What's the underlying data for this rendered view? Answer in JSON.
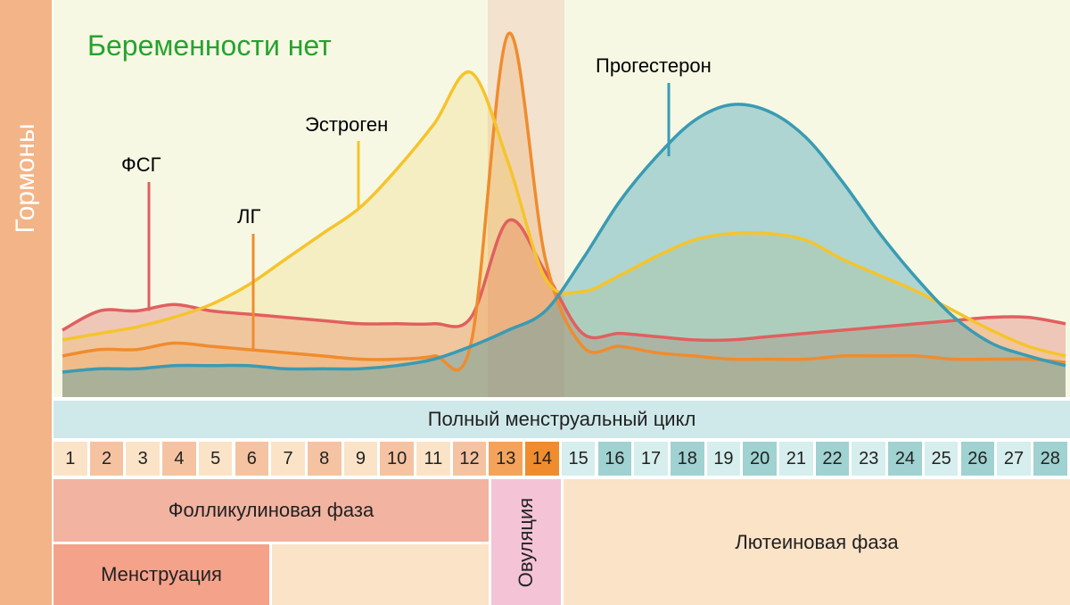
{
  "y_axis_label": "Гормоны",
  "chart_data": {
    "type": "line",
    "title": "Беременности нет",
    "xlabel": "Полный менструальный цикл",
    "x": [
      1,
      2,
      3,
      4,
      5,
      6,
      7,
      8,
      9,
      10,
      11,
      12,
      13,
      14,
      15,
      16,
      17,
      18,
      19,
      20,
      21,
      22,
      23,
      24,
      25,
      26,
      27,
      28
    ],
    "series": [
      {
        "name": "ФСГ",
        "color": "#e0605f",
        "values": [
          18,
          24,
          24,
          26,
          24,
          23,
          22,
          21,
          20,
          20,
          20,
          22,
          52,
          36,
          17,
          17,
          16,
          15,
          15,
          16,
          17,
          18,
          19,
          20,
          21,
          22,
          22,
          20
        ]
      },
      {
        "name": "ЛГ",
        "color": "#ef8c2e",
        "values": [
          10,
          12,
          12,
          14,
          13,
          12,
          11,
          10,
          9,
          9,
          10,
          14,
          110,
          40,
          13,
          13,
          11,
          10,
          9,
          9,
          9,
          10,
          10,
          10,
          9,
          9,
          9,
          8
        ]
      },
      {
        "name": "Эстроген",
        "color": "#f5c42c",
        "values": [
          15,
          17,
          19,
          22,
          26,
          32,
          40,
          48,
          56,
          68,
          82,
          98,
          70,
          34,
          30,
          35,
          41,
          46,
          48,
          48,
          46,
          40,
          35,
          30,
          24,
          18,
          13,
          10
        ]
      },
      {
        "name": "Прогестерон",
        "color": "#3a9bb3",
        "values": [
          5,
          6,
          6,
          7,
          7,
          7,
          6,
          6,
          6,
          7,
          9,
          13,
          18,
          24,
          40,
          58,
          72,
          83,
          88,
          86,
          78,
          64,
          48,
          34,
          22,
          14,
          10,
          7
        ]
      }
    ]
  },
  "cycle_label": "Полный менструальный цикл",
  "days": [
    "1",
    "2",
    "3",
    "4",
    "5",
    "6",
    "7",
    "8",
    "9",
    "10",
    "11",
    "12",
    "13",
    "14",
    "15",
    "16",
    "17",
    "18",
    "19",
    "20",
    "21",
    "22",
    "23",
    "24",
    "25",
    "26",
    "27",
    "28"
  ],
  "phases": {
    "follicular": "Фолликулиновая фаза",
    "menstruation": "Менструация",
    "ovulation": "Овуляция",
    "luteal": "Лютеиновая фаза"
  },
  "colors": {
    "title": "#27a22e",
    "fsh": "#e0605f",
    "lh": "#ef8c2e",
    "estrogen": "#f5c42c",
    "progesterone": "#3a9bb3",
    "chart_bg": "#f6f8e4",
    "ovulation_band": "#f1dcc8",
    "cycle_bar": "#cfe9ea",
    "follicular": "#f2b3a1",
    "menstruation": "#f5a28b",
    "ovulation": "#f4c4d6",
    "luteal": "#fbe3c8"
  }
}
